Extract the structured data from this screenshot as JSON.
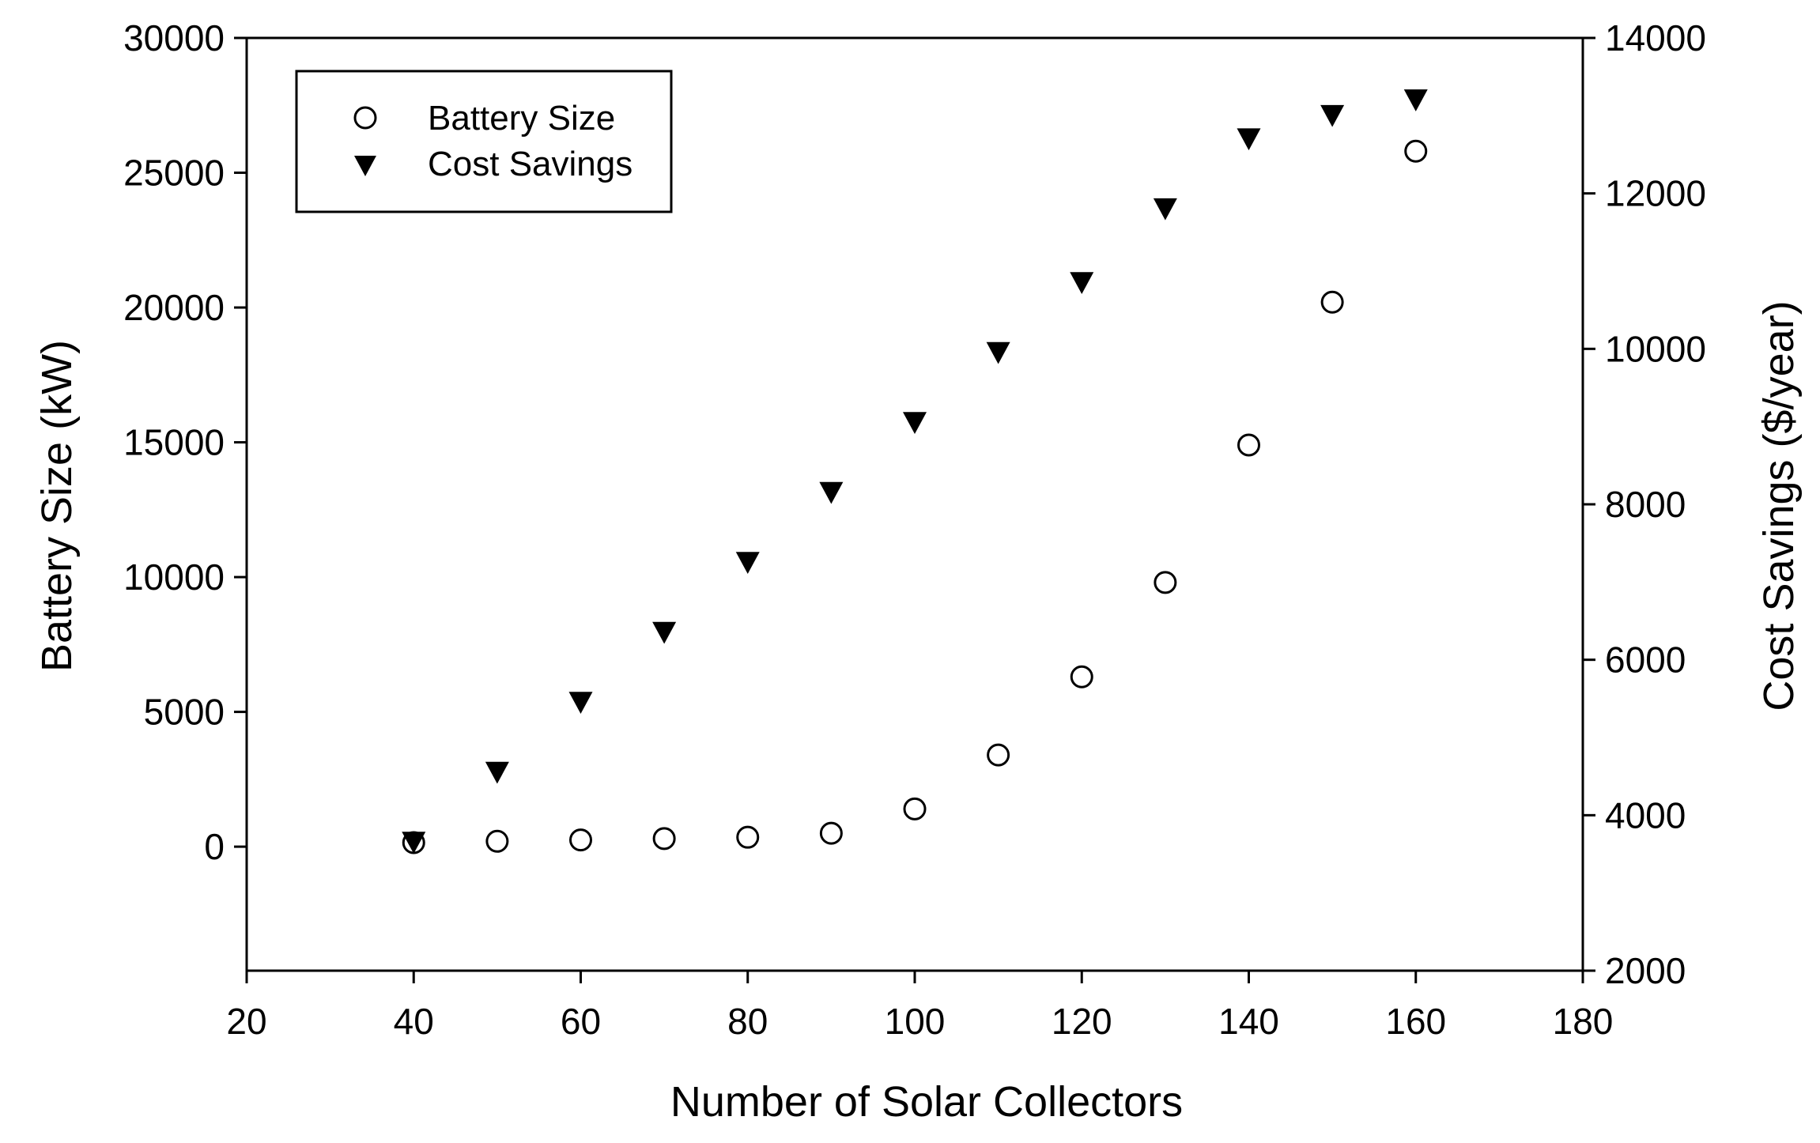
{
  "chart_data": {
    "type": "scatter",
    "title": "",
    "x": [
      40,
      50,
      60,
      70,
      80,
      90,
      100,
      110,
      120,
      130,
      140,
      150,
      160
    ],
    "xlabel": "Number of Solar Collectors",
    "xlim": [
      20,
      180
    ],
    "xticks": [
      20,
      40,
      60,
      80,
      100,
      120,
      140,
      160,
      180
    ],
    "ylabel": "Battery Size (kW)",
    "ylim": [
      -4600,
      30000
    ],
    "yticks": [
      0,
      5000,
      10000,
      15000,
      20000,
      25000,
      30000
    ],
    "y2label": "Cost Savings ($/year)",
    "y2lim": [
      2000,
      14000
    ],
    "y2ticks": [
      2000,
      4000,
      6000,
      8000,
      10000,
      12000,
      14000
    ],
    "grid": false,
    "legend_position": "top-left",
    "series": [
      {
        "name": "Battery Size",
        "axis": "left",
        "marker": "open-circle",
        "values": [
          150,
          200,
          250,
          300,
          350,
          500,
          1400,
          3400,
          6300,
          9800,
          14900,
          20200,
          25800
        ]
      },
      {
        "name": "Cost Savings",
        "axis": "right",
        "marker": "filled-down-triangle",
        "values": [
          3650,
          4550,
          5450,
          6350,
          7250,
          8150,
          9050,
          9950,
          10850,
          11800,
          12700,
          13000,
          13200
        ]
      }
    ],
    "colors": {
      "marker": "#000000",
      "axis": "#000000",
      "background": "#ffffff"
    }
  }
}
